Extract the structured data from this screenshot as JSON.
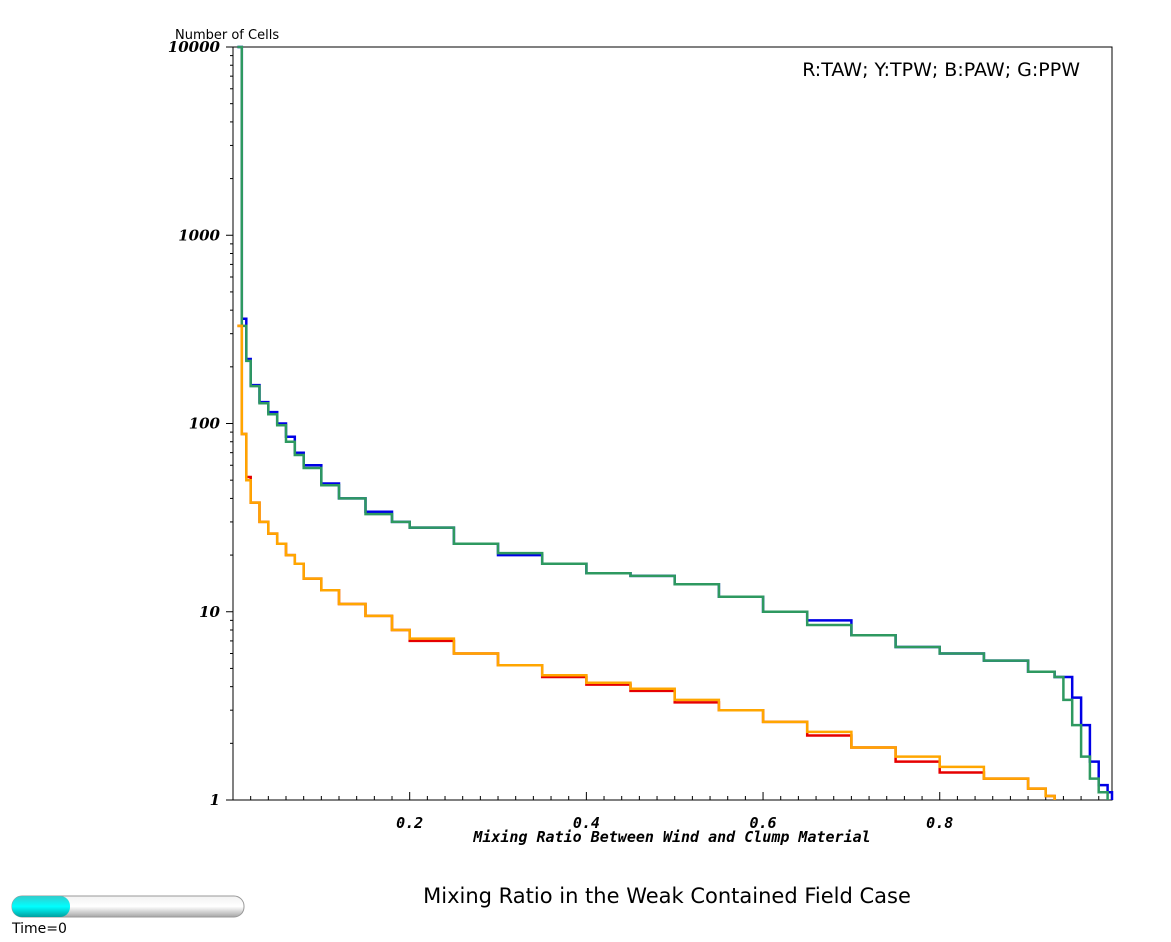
{
  "chart_data": {
    "type": "line",
    "title": "Mixing Ratio in the Weak Contained Field Case",
    "xlabel": "Mixing Ratio Between Wind and Clump Material",
    "ylabel": "Number of Cells",
    "yscale": "log",
    "xlim": [
      0,
      0.995
    ],
    "ylim": [
      1,
      10000
    ],
    "x_ticks": [
      "0.2",
      "0.4",
      "0.6",
      "0.8"
    ],
    "x_tick_values": [
      0.2,
      0.4,
      0.6,
      0.8
    ],
    "y_ticks": [
      "1",
      "10",
      "100",
      "1000",
      "10000"
    ],
    "y_tick_values": [
      1,
      10,
      100,
      1000,
      10000
    ],
    "legend_text": "R:TAW; Y:TPW; B:PAW; G:PPW",
    "legend_placement": "top-right",
    "grid": false,
    "step": "post",
    "series": [
      {
        "name": "PAW",
        "color": "#0000e6",
        "x": [
          0.005,
          0.01,
          0.015,
          0.02,
          0.03,
          0.04,
          0.05,
          0.06,
          0.07,
          0.08,
          0.1,
          0.12,
          0.15,
          0.18,
          0.2,
          0.25,
          0.3,
          0.35,
          0.4,
          0.45,
          0.5,
          0.55,
          0.6,
          0.65,
          0.7,
          0.75,
          0.8,
          0.85,
          0.9,
          0.93,
          0.95,
          0.96,
          0.97,
          0.98,
          0.99,
          0.995
        ],
        "y": [
          10000,
          360,
          220,
          160,
          130,
          115,
          100,
          85,
          70,
          60,
          48,
          40,
          34,
          30,
          28,
          23,
          20,
          18,
          16,
          15.5,
          14,
          12,
          10,
          9,
          7.5,
          6.5,
          6,
          5.5,
          4.8,
          4.5,
          3.5,
          2.5,
          1.6,
          1.2,
          1.1,
          1
        ]
      },
      {
        "name": "PPW",
        "color": "#2e9960",
        "x": [
          0.005,
          0.01,
          0.015,
          0.02,
          0.03,
          0.04,
          0.05,
          0.06,
          0.07,
          0.08,
          0.1,
          0.12,
          0.15,
          0.18,
          0.2,
          0.25,
          0.3,
          0.35,
          0.4,
          0.45,
          0.5,
          0.55,
          0.6,
          0.65,
          0.7,
          0.75,
          0.8,
          0.85,
          0.9,
          0.93,
          0.94,
          0.95,
          0.96,
          0.97,
          0.98,
          0.99
        ],
        "y": [
          10000,
          330,
          215,
          158,
          128,
          112,
          98,
          80,
          68,
          58,
          47,
          40,
          33,
          30,
          28,
          23,
          20.5,
          18,
          16,
          15.5,
          14,
          12,
          10,
          8.5,
          7.5,
          6.5,
          6,
          5.5,
          4.8,
          4.5,
          3.4,
          2.5,
          1.7,
          1.3,
          1.1,
          1
        ]
      },
      {
        "name": "TAW",
        "color": "#e60000",
        "x": [
          0.005,
          0.01,
          0.015,
          0.02,
          0.03,
          0.04,
          0.05,
          0.06,
          0.07,
          0.08,
          0.1,
          0.12,
          0.15,
          0.18,
          0.2,
          0.25,
          0.3,
          0.35,
          0.4,
          0.45,
          0.5,
          0.55,
          0.6,
          0.65,
          0.7,
          0.75,
          0.8,
          0.85,
          0.9,
          0.92,
          0.93
        ],
        "y": [
          330,
          88,
          52,
          38,
          30,
          26,
          23,
          20,
          18,
          15,
          13,
          11,
          9.5,
          8,
          7,
          6,
          5.2,
          4.5,
          4.1,
          3.8,
          3.3,
          3,
          2.6,
          2.2,
          1.9,
          1.6,
          1.4,
          1.3,
          1.15,
          1.05,
          1
        ]
      },
      {
        "name": "TPW",
        "color": "#ffa600",
        "x": [
          0.005,
          0.01,
          0.015,
          0.02,
          0.03,
          0.04,
          0.05,
          0.06,
          0.07,
          0.08,
          0.1,
          0.12,
          0.15,
          0.18,
          0.2,
          0.25,
          0.3,
          0.35,
          0.4,
          0.45,
          0.5,
          0.55,
          0.6,
          0.65,
          0.7,
          0.75,
          0.8,
          0.85,
          0.9,
          0.92,
          0.93
        ],
        "y": [
          330,
          88,
          50,
          38,
          30,
          26,
          23,
          20,
          18,
          15,
          13,
          11,
          9.5,
          8,
          7.2,
          6,
          5.2,
          4.6,
          4.2,
          3.9,
          3.4,
          3,
          2.6,
          2.3,
          1.9,
          1.7,
          1.5,
          1.3,
          1.15,
          1.05,
          1
        ]
      }
    ]
  },
  "time_slider": {
    "label": "Time=0",
    "fill_fraction": 0.25,
    "fill_color": "#00e6e6",
    "track_color": "#d9d9d9"
  }
}
